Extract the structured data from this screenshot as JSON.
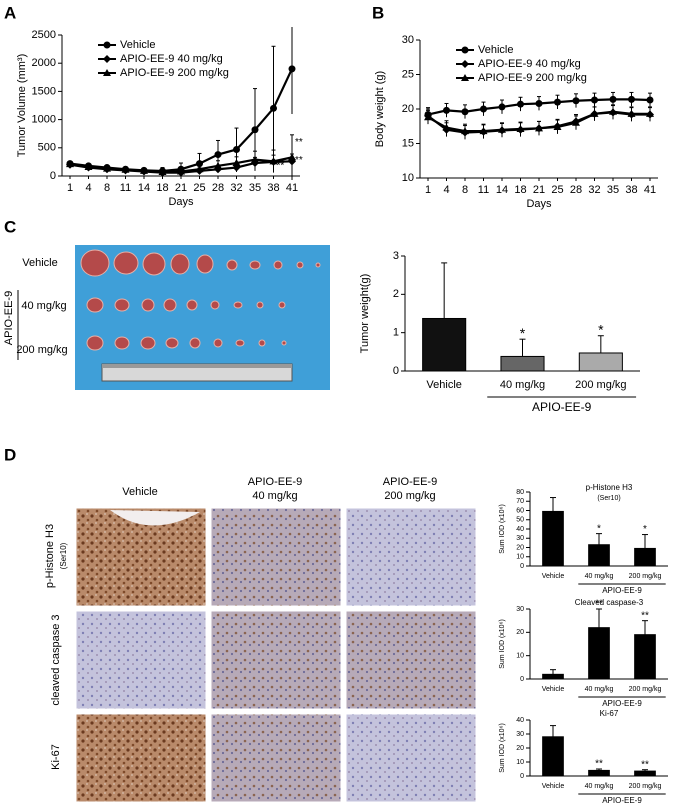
{
  "panels": {
    "letters": [
      "A",
      "B",
      "C",
      "D"
    ],
    "photo": {
      "rows": [
        "Vehicle",
        "40 mg/kg",
        "200 mg/kg"
      ],
      "group": "APIO-EE-9"
    },
    "histology": {
      "columns": [
        [
          "Vehicle"
        ],
        [
          "APIO-EE-9",
          "40 mg/kg"
        ],
        [
          "APIO-EE-9",
          "200 mg/kg"
        ]
      ],
      "rows": [
        [
          "p-Histone H3",
          "(Ser10)"
        ],
        [
          "cleaved caspase 3"
        ],
        [
          "Ki-67"
        ]
      ]
    }
  },
  "chart_data": [
    {
      "type": "line",
      "xlabel": "Days",
      "ylabel": "Tumor Volume (mm³)",
      "categories": [
        "1",
        "4",
        "8",
        "11",
        "14",
        "18",
        "21",
        "25",
        "28",
        "32",
        "35",
        "38",
        "41"
      ],
      "ylim": [
        0,
        2500
      ],
      "yticks": [
        0,
        500,
        1000,
        1500,
        2000,
        2500
      ],
      "legend": "top-left",
      "series": [
        {
          "name": "Vehicle",
          "color": "#000000",
          "marker": "circle",
          "values": [
            220,
            180,
            150,
            120,
            100,
            90,
            120,
            220,
            380,
            470,
            820,
            1200,
            1900
          ],
          "errors": [
            30,
            40,
            40,
            40,
            40,
            60,
            110,
            180,
            250,
            380,
            730,
            1100,
            800
          ]
        },
        {
          "name": "APIO-EE-9 40 mg/kg",
          "color": "#000000",
          "marker": "diamond",
          "values": [
            200,
            150,
            120,
            100,
            80,
            60,
            60,
            90,
            120,
            150,
            230,
            250,
            260
          ],
          "errors": [
            30,
            30,
            30,
            30,
            30,
            30,
            40,
            50,
            60,
            80,
            100,
            120,
            130
          ]
        },
        {
          "name": "APIO-EE-9 200 mg/kg",
          "color": "#000000",
          "marker": "triangle",
          "values": [
            210,
            160,
            130,
            110,
            90,
            70,
            80,
            120,
            180,
            230,
            290,
            260,
            330
          ],
          "errors": [
            30,
            30,
            30,
            30,
            30,
            40,
            50,
            70,
            90,
            110,
            150,
            200,
            400
          ]
        }
      ],
      "annotations": [
        {
          "x": "41",
          "y": 600,
          "text": "**"
        },
        {
          "x": "41",
          "y": 280,
          "text": "**"
        },
        {
          "x": "38",
          "y": 180,
          "text": "**"
        }
      ]
    },
    {
      "type": "line",
      "xlabel": "Days",
      "ylabel": "Body weight (g)",
      "categories": [
        "1",
        "4",
        "8",
        "11",
        "14",
        "18",
        "21",
        "25",
        "28",
        "32",
        "35",
        "38",
        "41"
      ],
      "ylim": [
        10,
        30
      ],
      "yticks": [
        10,
        15,
        20,
        25,
        30
      ],
      "legend": "top-left",
      "series": [
        {
          "name": "Vehicle",
          "color": "#000000",
          "marker": "circle",
          "values": [
            19.2,
            19.8,
            19.6,
            20,
            20.3,
            20.7,
            20.8,
            21,
            21.2,
            21.3,
            21.4,
            21.4,
            21.3
          ],
          "errors": [
            1,
            1,
            1,
            1,
            1,
            1,
            1,
            1,
            1,
            1,
            1,
            1,
            1
          ]
        },
        {
          "name": "APIO-EE-9 40 mg/kg",
          "color": "#000000",
          "marker": "diamond",
          "values": [
            19,
            17,
            16.6,
            16.7,
            16.9,
            17,
            17.2,
            17.5,
            18.2,
            19.3,
            19.5,
            19.2,
            19.2
          ],
          "errors": [
            1,
            1,
            1,
            1,
            1,
            1,
            1,
            1,
            1,
            1,
            1,
            1,
            1
          ]
        },
        {
          "name": "APIO-EE-9 200 mg/kg",
          "color": "#000000",
          "marker": "triangle",
          "values": [
            18.8,
            17.3,
            16.8,
            16.8,
            17,
            17.1,
            17.2,
            17.4,
            18,
            19.3,
            19.6,
            19.3,
            19.3
          ],
          "errors": [
            1,
            1,
            1,
            1,
            1,
            1,
            1,
            1,
            1,
            1,
            1,
            1,
            1
          ]
        }
      ]
    },
    {
      "type": "bar",
      "ylabel": "Tumor weight(g)",
      "categories": [
        "Vehicle",
        "40 mg/kg",
        "200 mg/kg"
      ],
      "values": [
        1.37,
        0.38,
        0.47
      ],
      "errors": [
        1.45,
        0.45,
        0.45
      ],
      "colors": [
        "#111111",
        "#666666",
        "#aaaaaa"
      ],
      "ylim": [
        0,
        3
      ],
      "yticks": [
        0,
        1,
        2,
        3
      ],
      "group_label": "APIO-EE-9",
      "annotations": [
        {
          "x": "40 mg/kg",
          "text": "*"
        },
        {
          "x": "200 mg/kg",
          "text": "*"
        }
      ]
    },
    {
      "type": "bar",
      "title": "p-Histone H3",
      "subtitle": "(Ser10)",
      "ylabel": "Sum IOD (x10⁶)",
      "categories": [
        "Vehicle",
        "40 mg/kg",
        "200 mg/kg"
      ],
      "values": [
        59,
        23,
        19
      ],
      "errors": [
        15,
        12,
        15
      ],
      "colors": [
        "#000000",
        "#000000",
        "#000000"
      ],
      "ylim": [
        0,
        80
      ],
      "yticks": [
        0,
        10,
        20,
        30,
        40,
        50,
        60,
        70,
        80
      ],
      "group_label": "APIO-EE-9",
      "annotations": [
        {
          "x": "40 mg/kg",
          "text": "*"
        },
        {
          "x": "200 mg/kg",
          "text": "*"
        }
      ]
    },
    {
      "type": "bar",
      "title": "Cleaved caspase-3",
      "ylabel": "Sum IOD (x10⁶)",
      "categories": [
        "Vehicle",
        "40 mg/kg",
        "200 mg/kg"
      ],
      "values": [
        2,
        22,
        19
      ],
      "errors": [
        2,
        8,
        6
      ],
      "colors": [
        "#000000",
        "#000000",
        "#000000"
      ],
      "ylim": [
        0,
        30
      ],
      "yticks": [
        0,
        10,
        20,
        30
      ],
      "group_label": "APIO-EE-9",
      "annotations": [
        {
          "x": "40 mg/kg",
          "text": "**"
        },
        {
          "x": "200 mg/kg",
          "text": "**"
        }
      ]
    },
    {
      "type": "bar",
      "title": "Ki-67",
      "ylabel": "Sum IOD (x10⁶)",
      "categories": [
        "Vehicle",
        "40 mg/kg",
        "200 mg/kg"
      ],
      "values": [
        28,
        4,
        3.5
      ],
      "errors": [
        8,
        1,
        1
      ],
      "colors": [
        "#000000",
        "#000000",
        "#000000"
      ],
      "ylim": [
        0,
        40
      ],
      "yticks": [
        0,
        10,
        20,
        30,
        40
      ],
      "group_label": "APIO-EE-9",
      "annotations": [
        {
          "x": "40 mg/kg",
          "text": "**"
        },
        {
          "x": "200 mg/kg",
          "text": "**"
        }
      ]
    }
  ]
}
